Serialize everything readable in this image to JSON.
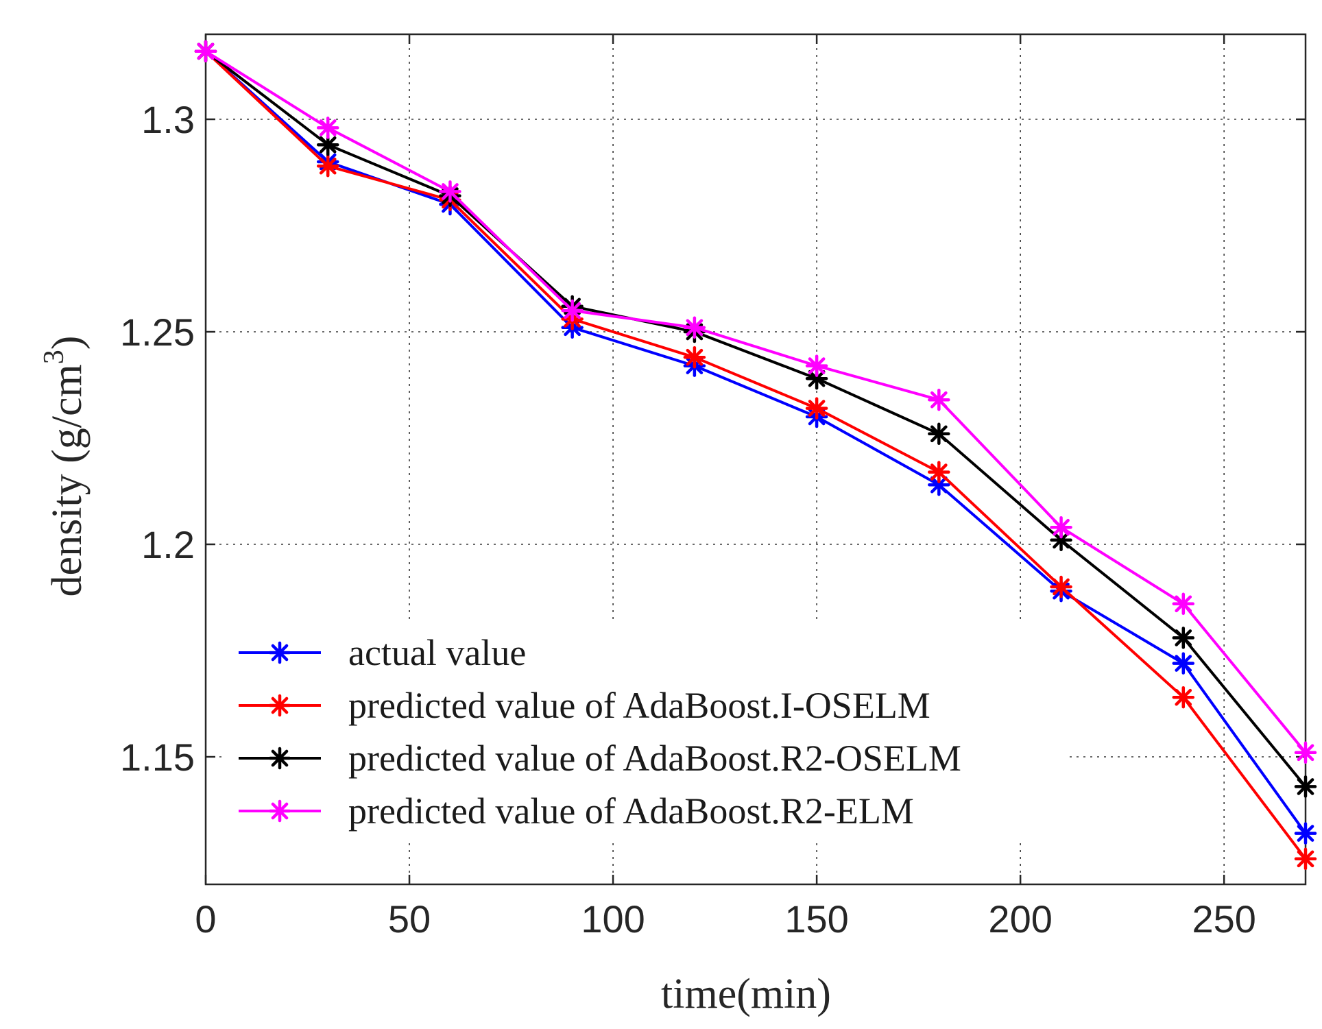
{
  "chart_data": {
    "type": "line",
    "xlabel": "time(min)",
    "ylabel": {
      "main": "density (g/cm",
      "superscript": "3",
      "close": ")"
    },
    "xlim": [
      0,
      270
    ],
    "ylim": [
      1.12,
      1.32
    ],
    "xticks": [
      0,
      50,
      100,
      150,
      200,
      250
    ],
    "xtick_labels": [
      "0",
      "50",
      "100",
      "150",
      "200",
      "250"
    ],
    "yticks": [
      1.15,
      1.2,
      1.25,
      1.3
    ],
    "ytick_labels": [
      "1.15",
      "1.2",
      "1.25",
      "1.3"
    ],
    "grid": true,
    "grid_style": "dotted",
    "legend_position": "lower-left",
    "marker": "asterisk",
    "x": [
      0,
      30,
      60,
      90,
      120,
      150,
      180,
      210,
      240,
      270
    ],
    "series": [
      {
        "name": "actual value",
        "color": "#0000ff",
        "values": [
          1.316,
          1.29,
          1.28,
          1.251,
          1.242,
          1.23,
          1.214,
          1.189,
          1.172,
          1.132
        ]
      },
      {
        "name": "predicted value of AdaBoost.I-OSELM",
        "color": "#ff0000",
        "values": [
          1.316,
          1.289,
          1.281,
          1.253,
          1.244,
          1.232,
          1.217,
          1.19,
          1.164,
          1.126
        ]
      },
      {
        "name": "predicted value of AdaBoost.R2-OSELM",
        "color": "#000000",
        "values": [
          1.316,
          1.294,
          1.282,
          1.256,
          1.25,
          1.239,
          1.226,
          1.201,
          1.178,
          1.143
        ]
      },
      {
        "name": "predicted value of AdaBoost.R2-ELM",
        "color": "#ff00ff",
        "values": [
          1.316,
          1.298,
          1.283,
          1.255,
          1.251,
          1.242,
          1.234,
          1.204,
          1.186,
          1.151
        ]
      }
    ]
  }
}
